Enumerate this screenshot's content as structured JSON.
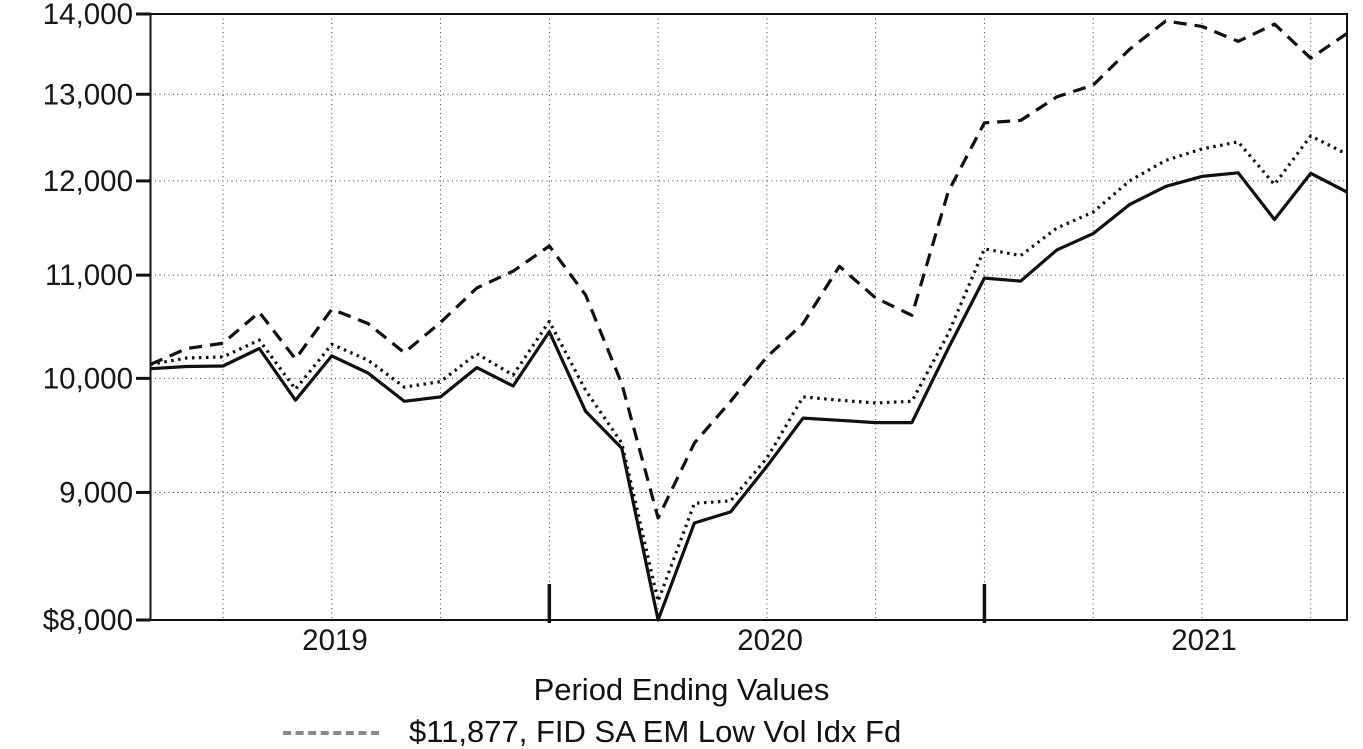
{
  "chart_data": {
    "type": "line",
    "title": "Period Ending Values",
    "yscale": "log",
    "ylim": [
      8000,
      14000
    ],
    "grid": "dotted horizontal gridlines each 1,000; dotted vertical gridlines quarterly; solid year-end tick marks",
    "legend_position": "bottom, first entry only partially visible (clipped by image edge)",
    "y_ticks": [
      {
        "value": 14000,
        "label": "14,000"
      },
      {
        "value": 13000,
        "label": "13,000"
      },
      {
        "value": 12000,
        "label": "12,000"
      },
      {
        "value": 11000,
        "label": "11,000"
      },
      {
        "value": 10000,
        "label": "10,000"
      },
      {
        "value": 9000,
        "label": "9,000"
      },
      {
        "value": 8000,
        "label": "$8,000"
      }
    ],
    "x_year_labels": [
      "2019",
      "2020",
      "2021"
    ],
    "x": [
      "2019-01",
      "2019-02",
      "2019-03",
      "2019-04",
      "2019-05",
      "2019-06",
      "2019-07",
      "2019-08",
      "2019-09",
      "2019-10",
      "2019-11",
      "2019-12",
      "2020-01",
      "2020-02",
      "2020-03",
      "2020-04",
      "2020-05",
      "2020-06",
      "2020-07",
      "2020-08",
      "2020-09",
      "2020-10",
      "2020-11",
      "2020-12",
      "2021-01",
      "2021-02",
      "2021-03",
      "2021-04",
      "2021-05",
      "2021-06",
      "2021-07",
      "2021-08",
      "2021-09",
      "2021-10"
    ],
    "series": [
      {
        "name": "FID SA EM Low Vol Idx Fd",
        "line_style": "solid",
        "final_value": 11877,
        "values": [
          10090,
          10110,
          10115,
          10280,
          9800,
          10210,
          10050,
          9790,
          9830,
          10100,
          9930,
          10440,
          9700,
          9375,
          8000,
          8750,
          8840,
          9220,
          9640,
          9620,
          9600,
          9600,
          10280,
          10970,
          10940,
          11260,
          11430,
          11740,
          11940,
          12050,
          12090,
          11580,
          12085,
          11877
        ]
      },
      {
        "name": "",
        "line_style": "dotted",
        "values": [
          10130,
          10190,
          10200,
          10360,
          9900,
          10320,
          10170,
          9920,
          9970,
          10230,
          10030,
          10540,
          9890,
          9420,
          8140,
          8910,
          8930,
          9290,
          9830,
          9800,
          9775,
          9790,
          10420,
          11270,
          11200,
          11490,
          11660,
          12000,
          12230,
          12360,
          12440,
          11960,
          12510,
          12300
        ]
      },
      {
        "name": "",
        "line_style": "dashed",
        "values": [
          10130,
          10280,
          10330,
          10630,
          10180,
          10660,
          10520,
          10240,
          10530,
          10870,
          11040,
          11300,
          10800,
          9950,
          8790,
          9420,
          9790,
          10200,
          10520,
          11090,
          10770,
          10600,
          11880,
          12660,
          12690,
          12970,
          13110,
          13550,
          13910,
          13840,
          13650,
          13870,
          13440,
          13750
        ]
      }
    ]
  },
  "legend": {
    "first_entry_label": "$11,877, FID SA EM Low Vol Idx Fd"
  },
  "colors": {
    "line": "#101010",
    "grid": "#3a3a3a",
    "text": "#161616",
    "background": "#ffffff"
  }
}
